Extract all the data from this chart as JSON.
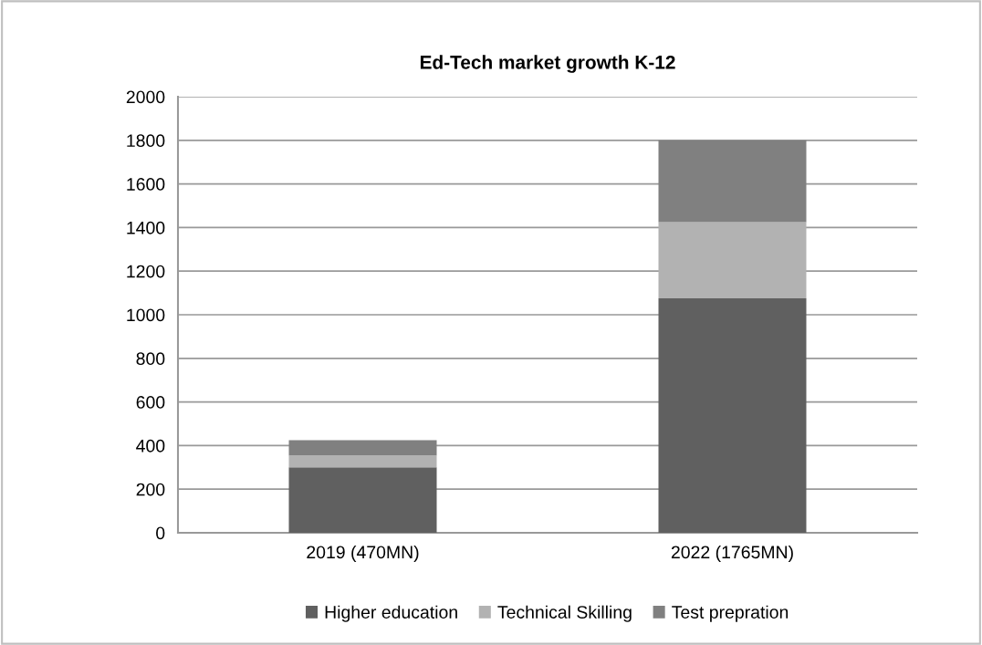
{
  "chart_data": {
    "type": "bar",
    "title": "Ed-Tech market growth K-12",
    "categories": [
      "2019 (470MN)",
      "2022 (1765MN)"
    ],
    "stacked": true,
    "series": [
      {
        "name": "Higher education",
        "color": "#606060",
        "values": [
          300,
          1075
        ]
      },
      {
        "name": "Technical Skilling",
        "color": "#b2b2b2",
        "values": [
          55,
          350
        ]
      },
      {
        "name": "Test prepration",
        "color": "#808080",
        "values": [
          70,
          375
        ]
      }
    ],
    "ylim": [
      0,
      2000
    ],
    "yticks": [
      0,
      200,
      400,
      600,
      800,
      1000,
      1200,
      1400,
      1600,
      1800,
      2000
    ],
    "grid": "y",
    "legend": "bottom"
  }
}
